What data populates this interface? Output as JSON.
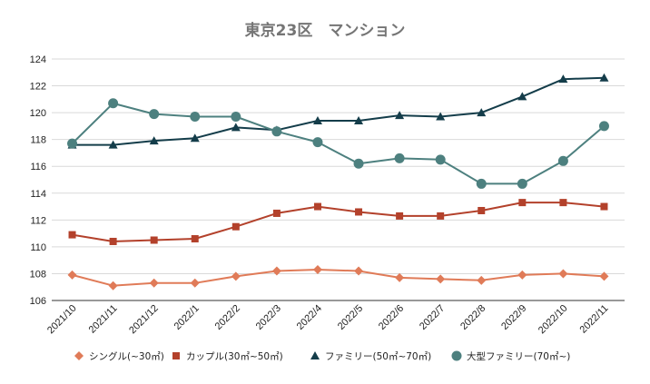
{
  "chart_data": {
    "type": "line",
    "title": "東京23区　マンション",
    "xlabel": "",
    "ylabel": "",
    "categories": [
      "2021/10",
      "2021/11",
      "2021/12",
      "2022/1",
      "2022/2",
      "2022/3",
      "2022/4",
      "2022/5",
      "2022/6",
      "2022/7",
      "2022/8",
      "2022/9",
      "2022/10",
      "2022/11"
    ],
    "ylim": [
      106,
      124
    ],
    "yticks": [
      106,
      108,
      110,
      112,
      114,
      116,
      118,
      120,
      122,
      124
    ],
    "grid": true,
    "legend_position": "bottom",
    "series": [
      {
        "name": "シングル(~30㎡)",
        "marker": "diamond",
        "color": "#e07b58",
        "values": [
          107.9,
          107.1,
          107.3,
          107.3,
          107.8,
          108.2,
          108.3,
          108.2,
          107.7,
          107.6,
          107.5,
          107.9,
          108.0,
          107.8
        ]
      },
      {
        "name": "カップル(30㎡~50㎡)",
        "marker": "square",
        "color": "#b3412b",
        "values": [
          110.9,
          110.4,
          110.5,
          110.6,
          111.5,
          112.5,
          113.0,
          112.6,
          112.3,
          112.3,
          112.7,
          113.3,
          113.3,
          113.0
        ]
      },
      {
        "name": "ファミリー(50㎡~70㎡)",
        "marker": "triangle",
        "color": "#143d4a",
        "values": [
          117.6,
          117.6,
          117.9,
          118.1,
          118.9,
          118.7,
          119.4,
          119.4,
          119.8,
          119.7,
          120.0,
          121.2,
          122.5,
          122.6
        ]
      },
      {
        "name": "大型ファミリー(70㎡~)",
        "marker": "circle",
        "color": "#4d807f",
        "values": [
          117.7,
          120.7,
          119.9,
          119.7,
          119.7,
          118.6,
          117.8,
          116.2,
          116.6,
          116.5,
          114.7,
          114.7,
          116.4,
          119.0
        ]
      }
    ]
  }
}
